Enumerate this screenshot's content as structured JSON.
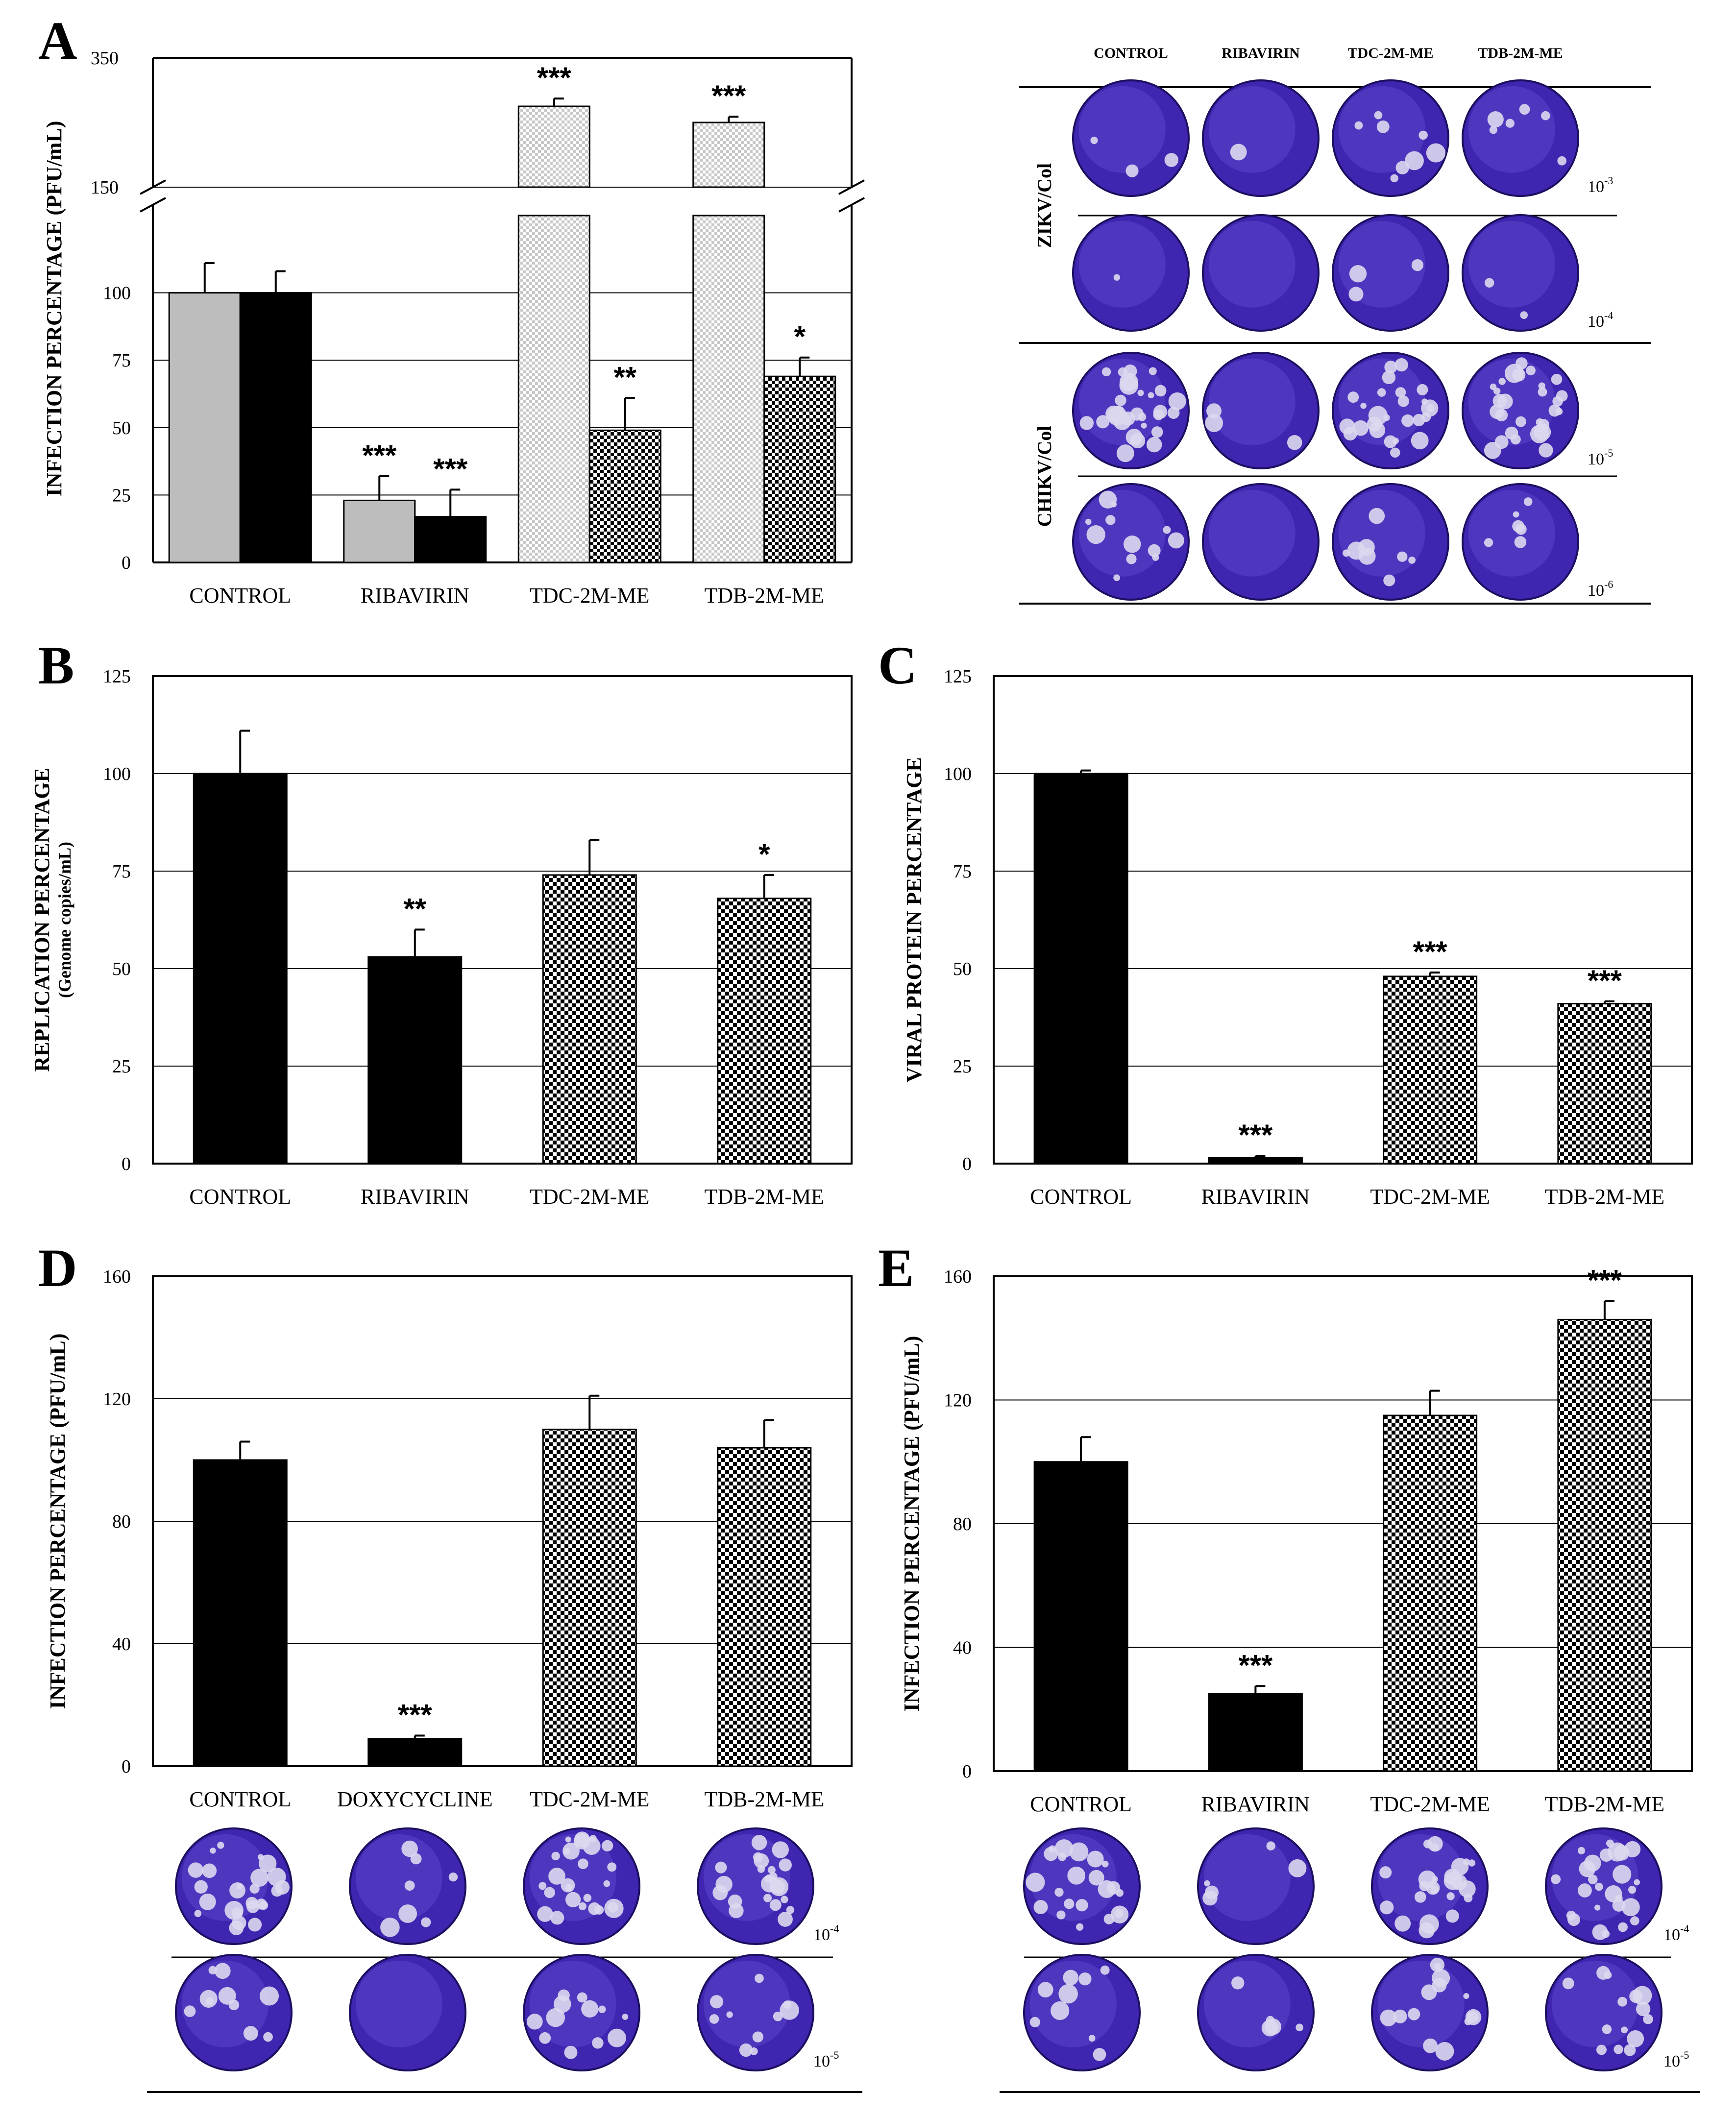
{
  "colors": {
    "black_bar": "#000000",
    "gray_bar": "#bdbdbd",
    "light_check": "#c8c8c8",
    "grid": "#000000",
    "plaque_dark": "#3a1fa8",
    "plaque_mid": "#5a3fc8",
    "plaque_light": "#8a7fd8",
    "plaque_spot": "#d8d4ec"
  },
  "panels": {
    "A": {
      "letter": "A"
    },
    "B": {
      "letter": "B"
    },
    "C": {
      "letter": "C"
    },
    "D": {
      "letter": "D"
    },
    "E": {
      "letter": "E"
    }
  },
  "plaques": {
    "A": {
      "headers": [
        "CONTROL",
        "RIBAVIRIN",
        "TDC-2M-ME",
        "TDB-2M-ME"
      ],
      "groups": [
        {
          "virus": "ZIKV/Col",
          "dilutions": [
            {
              "base": "10",
              "exp": "-3"
            },
            {
              "base": "10",
              "exp": "-4"
            }
          ],
          "spots": [
            [
              3,
              1,
              8,
              6
            ],
            [
              1,
              0,
              3,
              2
            ]
          ],
          "tone": [
            0.35,
            0.3
          ]
        },
        {
          "virus": "CHIKV/Col",
          "dilutions": [
            {
              "base": "10",
              "exp": "-5"
            },
            {
              "base": "10",
              "exp": "-6"
            }
          ],
          "spots": [
            [
              30,
              3,
              26,
              28
            ],
            [
              12,
              0,
              8,
              6
            ]
          ],
          "tone": [
            0.8,
            0.9
          ]
        }
      ]
    },
    "D": {
      "dilutions": [
        {
          "base": "10",
          "exp": "-4"
        },
        {
          "base": "10",
          "exp": "-5"
        }
      ],
      "spots": [
        [
          26,
          7,
          26,
          22
        ],
        [
          10,
          0,
          12,
          10
        ]
      ]
    },
    "E": {
      "dilutions": [
        {
          "base": "10",
          "exp": "-4"
        },
        {
          "base": "10",
          "exp": "-5"
        }
      ],
      "spots": [
        [
          22,
          5,
          24,
          26
        ],
        [
          9,
          5,
          14,
          14
        ]
      ]
    }
  },
  "chart_data": [
    {
      "panel": "A",
      "type": "bar",
      "ylabel": "INFECTION PERCENTAGE (PFU/mL)",
      "categories": [
        "CONTROL",
        "RIBAVIRIN",
        "TDC-2M-ME",
        "TDB-2M-ME"
      ],
      "axis_break": {
        "lower_max": 125,
        "upper_min": 150,
        "upper_max": 350
      },
      "ticks_lower": [
        "0",
        "25",
        "50",
        "75",
        "100"
      ],
      "ticks_upper": [
        "150",
        "350"
      ],
      "series": [
        {
          "name": "ZIKV/Col",
          "style": "gray",
          "values": [
            100,
            23,
            275,
            250
          ],
          "errors": [
            11,
            9,
            12,
            9
          ],
          "stars": [
            "",
            "***",
            "***",
            "***"
          ]
        },
        {
          "name": "CHIKV/Col",
          "style": "black",
          "values": [
            100,
            17,
            49,
            69
          ],
          "errors": [
            8,
            10,
            12,
            7
          ],
          "stars": [
            "",
            "***",
            "**",
            "*"
          ]
        }
      ]
    },
    {
      "panel": "B",
      "type": "bar",
      "ylabel": "REPLICATION PERCENTAGE",
      "ylabel_sub": "(Genome copies/mL)",
      "categories": [
        "CONTROL",
        "RIBAVIRIN",
        "TDC-2M-ME",
        "TDB-2M-ME"
      ],
      "ylim": [
        0,
        125
      ],
      "ticks": [
        "0",
        "25",
        "50",
        "75",
        "100",
        "125"
      ],
      "values": [
        100,
        53,
        74,
        68
      ],
      "errors": [
        11,
        7,
        9,
        6
      ],
      "stars": [
        "",
        "**",
        "",
        "*"
      ]
    },
    {
      "panel": "C",
      "type": "bar",
      "ylabel": "VIRAL PROTEIN PERCENTAGE",
      "categories": [
        "CONTROL",
        "RIBAVIRIN",
        "TDC-2M-ME",
        "TDB-2M-ME"
      ],
      "ylim": [
        0,
        125
      ],
      "ticks": [
        "0",
        "25",
        "50",
        "75",
        "100",
        "125"
      ],
      "values": [
        100,
        1.5,
        48,
        41
      ],
      "errors": [
        0.8,
        0.5,
        1,
        0.6
      ],
      "stars": [
        "",
        "***",
        "***",
        "***"
      ]
    },
    {
      "panel": "D",
      "type": "bar",
      "ylabel": "INFECTION PERCENTAGE (PFU/mL)",
      "categories": [
        "CONTROL",
        "DOXYCYCLINE",
        "TDC-2M-ME",
        "TDB-2M-ME"
      ],
      "ylim": [
        0,
        160
      ],
      "ticks": [
        "0",
        "40",
        "80",
        "120",
        "160"
      ],
      "values": [
        100,
        9,
        110,
        104
      ],
      "errors": [
        6,
        1,
        11,
        9
      ],
      "stars": [
        "",
        "***",
        "",
        ""
      ]
    },
    {
      "panel": "E",
      "type": "bar",
      "ylabel": "INFECTION PERCENTAGE (PFU/mL)",
      "categories": [
        "CONTROL",
        "RIBAVIRIN",
        "TDC-2M-ME",
        "TDB-2M-ME"
      ],
      "ylim": [
        0,
        160
      ],
      "ticks": [
        "0",
        "40",
        "80",
        "120",
        "160"
      ],
      "values": [
        100,
        25,
        115,
        146
      ],
      "errors": [
        8,
        2.5,
        8,
        6
      ],
      "stars": [
        "",
        "***",
        "",
        "***"
      ]
    }
  ]
}
